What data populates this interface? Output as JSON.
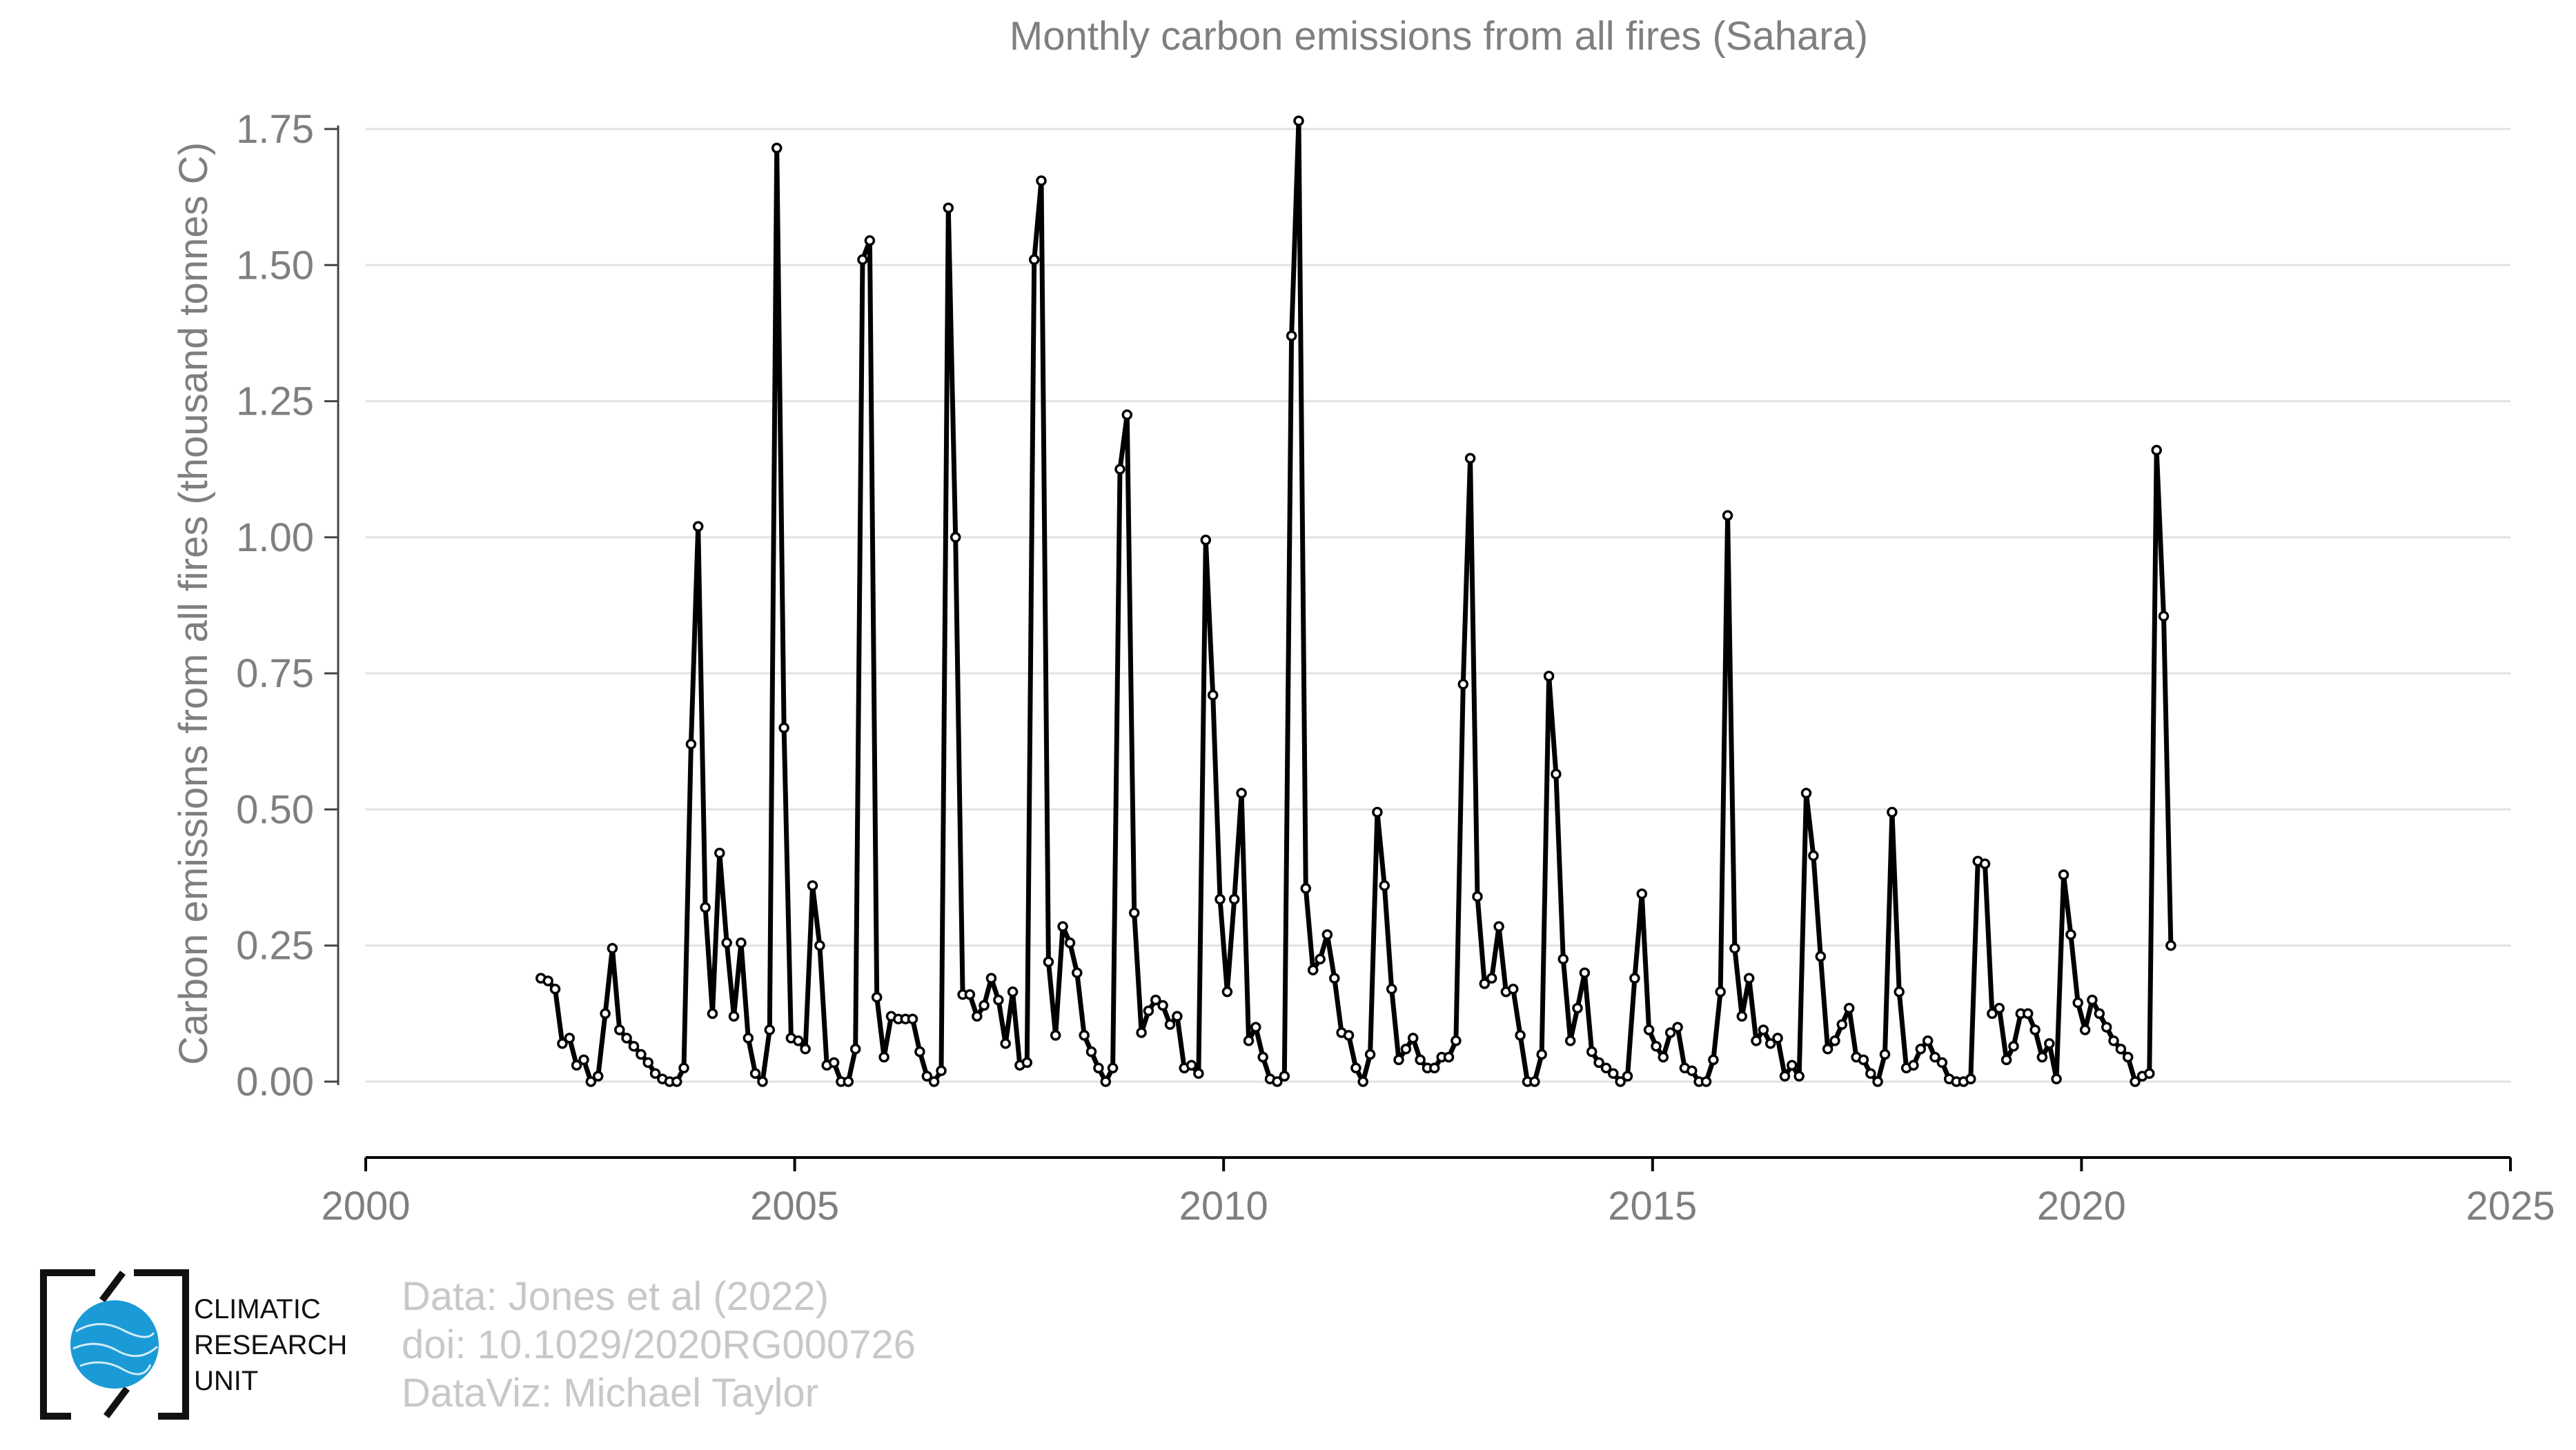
{
  "colors": {
    "line": "#000000",
    "marker_fill": "#ffffff",
    "grid": "#e2e2e2",
    "axis_text": "#7f7f7f",
    "credits_text": "#c8c8c8",
    "logo_blue": "#1a9ad6"
  },
  "chart_data": {
    "type": "line",
    "title": "Monthly carbon emissions from all fires (Sahara)",
    "xlabel": "",
    "ylabel": "Carbon emissions from all fires (thousand tonnes C)",
    "xlim": [
      2000,
      2025
    ],
    "ylim": [
      -0.14,
      1.8
    ],
    "xticks": [
      2000,
      2005,
      2010,
      2015,
      2020,
      2025
    ],
    "xtick_labels": [
      "2000",
      "2005",
      "2010",
      "2015",
      "2020",
      "2025"
    ],
    "yticks": [
      0,
      0.25,
      0.5,
      0.75,
      1.0,
      1.25,
      1.5,
      1.75
    ],
    "ytick_labels": [
      "0.00",
      "0.25",
      "0.50",
      "0.75",
      "1.00",
      "1.25",
      "1.50",
      "1.75"
    ],
    "grid": "horizontal",
    "legend": "none",
    "series": [
      {
        "start_year": 2002,
        "start_month": 1,
        "frequency": "monthly",
        "values": [
          0.19,
          0.185,
          0.17,
          0.07,
          0.08,
          0.03,
          0.04,
          0.0,
          0.01,
          0.125,
          0.245,
          0.095,
          0.08,
          0.065,
          0.05,
          0.035,
          0.015,
          0.005,
          0.0,
          0.0,
          0.025,
          0.62,
          1.02,
          0.32,
          0.125,
          0.42,
          0.255,
          0.12,
          0.255,
          0.08,
          0.015,
          0.0,
          0.095,
          1.715,
          0.65,
          0.08,
          0.075,
          0.06,
          0.36,
          0.25,
          0.03,
          0.035,
          0.0,
          0.0,
          0.06,
          1.51,
          1.545,
          0.155,
          0.045,
          0.12,
          0.115,
          0.115,
          0.115,
          0.055,
          0.01,
          0.0,
          0.02,
          1.605,
          1.0,
          0.16,
          0.16,
          0.12,
          0.14,
          0.19,
          0.15,
          0.07,
          0.165,
          0.03,
          0.035,
          1.51,
          1.655,
          0.22,
          0.085,
          0.285,
          0.255,
          0.2,
          0.085,
          0.055,
          0.025,
          0.0,
          0.025,
          1.125,
          1.225,
          0.31,
          0.09,
          0.13,
          0.15,
          0.14,
          0.105,
          0.12,
          0.025,
          0.03,
          0.015,
          0.995,
          0.71,
          0.335,
          0.165,
          0.335,
          0.53,
          0.075,
          0.1,
          0.045,
          0.005,
          0.0,
          0.01,
          1.37,
          1.765,
          0.355,
          0.205,
          0.225,
          0.27,
          0.19,
          0.09,
          0.085,
          0.025,
          0.0,
          0.05,
          0.495,
          0.36,
          0.17,
          0.04,
          0.06,
          0.08,
          0.04,
          0.025,
          0.025,
          0.045,
          0.045,
          0.075,
          0.73,
          1.145,
          0.34,
          0.18,
          0.19,
          0.285,
          0.165,
          0.17,
          0.085,
          0.0,
          0.0,
          0.05,
          0.745,
          0.565,
          0.225,
          0.075,
          0.135,
          0.2,
          0.055,
          0.035,
          0.025,
          0.015,
          0.0,
          0.01,
          0.19,
          0.345,
          0.095,
          0.065,
          0.045,
          0.09,
          0.1,
          0.025,
          0.02,
          0.0,
          0.0,
          0.04,
          0.165,
          1.04,
          0.245,
          0.12,
          0.19,
          0.075,
          0.095,
          0.07,
          0.08,
          0.01,
          0.03,
          0.01,
          0.53,
          0.415,
          0.23,
          0.06,
          0.075,
          0.105,
          0.135,
          0.045,
          0.04,
          0.015,
          0.0,
          0.05,
          0.495,
          0.165,
          0.025,
          0.03,
          0.06,
          0.075,
          0.045,
          0.035,
          0.005,
          0.0,
          0.0,
          0.005,
          0.405,
          0.4,
          0.125,
          0.135,
          0.04,
          0.065,
          0.125,
          0.125,
          0.095,
          0.045,
          0.07,
          0.005,
          0.38,
          0.27,
          0.145,
          0.095,
          0.15,
          0.125,
          0.1,
          0.075,
          0.06,
          0.045,
          0.0,
          0.01,
          0.015,
          1.16,
          0.855,
          0.25
        ]
      }
    ]
  },
  "credits": {
    "line1": "Data: Jones et al (2022)",
    "line2": "doi: 10.1029/2020RG000726",
    "line3": "DataViz: Michael Taylor"
  },
  "logo": {
    "icon": "globe-icon",
    "line1": "CLIMATIC",
    "line2": "RESEARCH",
    "line3": "UNIT"
  }
}
